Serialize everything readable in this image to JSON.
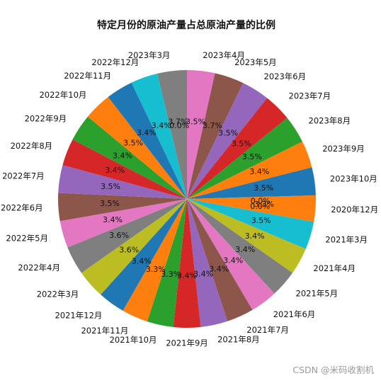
{
  "watermark": "CSDN @米码收割机",
  "chart_data": {
    "type": "pie",
    "title": "特定月份的原油产量占总原油产量的比例",
    "start_angle_deg": 90,
    "direction": "clockwise",
    "labels": [
      "2023年4月",
      "2023年5月",
      "2023年6月",
      "2023年7月",
      "2023年8月",
      "2023年9月",
      "2023年10月",
      "2020年12月",
      "2021年3月",
      "2021年4月",
      "2021年5月",
      "2021年6月",
      "2021年7月",
      "2021年8月",
      "2021年9月",
      "2021年10月",
      "2021年11月",
      "2021年12月",
      "2022年3月",
      "2022年4月",
      "2022年5月",
      "2022年6月",
      "2022年7月",
      "2022年8月",
      "2022年9月",
      "2022年10月",
      "2022年11月",
      "2022年12月",
      "2023年3月"
    ],
    "values": [
      3.5,
      3.7,
      3.5,
      3.5,
      3.5,
      3.4,
      3.5,
      3.3,
      3.5,
      3.4,
      3.4,
      3.4,
      3.4,
      3.4,
      3.4,
      3.3,
      3.3,
      3.4,
      3.6,
      3.6,
      3.4,
      3.5,
      3.5,
      3.4,
      3.4,
      3.5,
      3.4,
      3.4,
      3.7
    ],
    "percent_labels": [
      "3.5%",
      "3.7%",
      "3.5%",
      "3.5%",
      "3.5%",
      "3.4%",
      "3.5%",
      "3.3%",
      "3.5%",
      "3.4%",
      "3.4%",
      "3.4%",
      "3.4%",
      "3.4%",
      "3.4%",
      "3.3%",
      "3.3%",
      "3.4%",
      "3.6%",
      "3.6%",
      "3.4%",
      "3.5%",
      "3.5%",
      "3.4%",
      "3.4%",
      "3.5%",
      "3.4%",
      "3.4%",
      "3.7%"
    ],
    "zero_percent_labels": [
      "0.0%",
      "0.0%",
      "0.0%"
    ],
    "colors": [
      "#e377c2",
      "#8c564b",
      "#9467bd",
      "#d62728",
      "#2ca02c",
      "#ff7f0e",
      "#1f77b4",
      "#ff7f0e",
      "#17becf",
      "#bcbd22",
      "#7f7f7f",
      "#e377c2",
      "#8c564b",
      "#9467bd",
      "#d62728",
      "#2ca02c",
      "#ff7f0e",
      "#1f77b4",
      "#bcbd22",
      "#7f7f7f",
      "#e377c2",
      "#8c564b",
      "#9467bd",
      "#d62728",
      "#2ca02c",
      "#ff7f0e",
      "#1f77b4",
      "#17becf",
      "#7f7f7f"
    ]
  }
}
